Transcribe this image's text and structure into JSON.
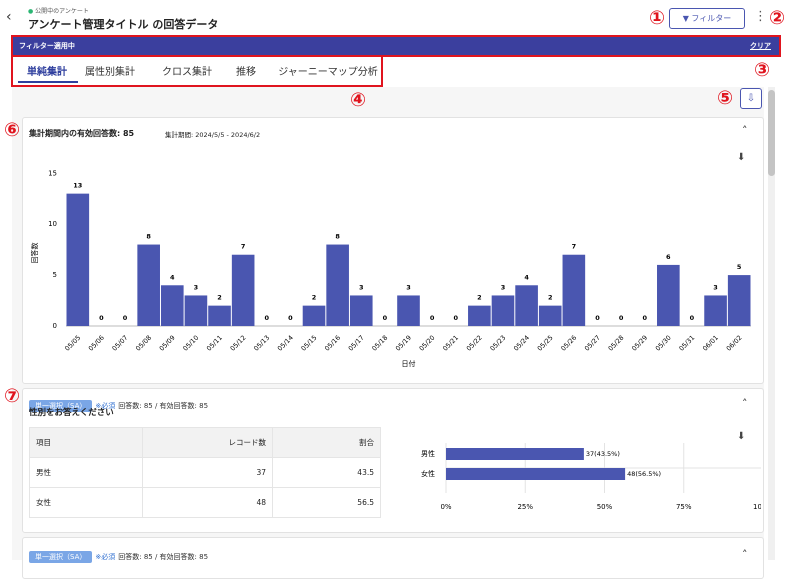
{
  "header": {
    "breadcrumb": "公開中のアンケート",
    "title": "アンケート管理タイトル の回答データ",
    "filter_button": "フィルター"
  },
  "annotations": [
    "①",
    "②",
    "③",
    "④",
    "⑤",
    "⑥",
    "⑦"
  ],
  "filter_bar": {
    "label": "フィルター適用中",
    "clear": "クリア"
  },
  "tabs": [
    "単純集計",
    "属性別集計",
    "クロス集計",
    "推移",
    "ジャーニーマップ分析"
  ],
  "summary": {
    "valid_responses": "集計期間内の有効回答数: 85",
    "period": "集計期間: 2024/5/5 - 2024/6/2"
  },
  "chart_data": [
    {
      "type": "bar",
      "x_label": "日付",
      "y_label": "回答数",
      "categories": [
        "05/05",
        "05/06",
        "05/07",
        "05/08",
        "05/09",
        "05/10",
        "05/11",
        "05/12",
        "05/13",
        "05/14",
        "05/15",
        "05/16",
        "05/17",
        "05/18",
        "05/19",
        "05/20",
        "05/21",
        "05/22",
        "05/23",
        "05/24",
        "05/25",
        "05/26",
        "05/27",
        "05/28",
        "05/29",
        "05/30",
        "05/31",
        "06/01",
        "06/02"
      ],
      "values": [
        13,
        0,
        0,
        8,
        4,
        3,
        2,
        7,
        0,
        0,
        2,
        8,
        3,
        0,
        3,
        0,
        0,
        2,
        3,
        4,
        2,
        7,
        0,
        0,
        0,
        6,
        0,
        3,
        5
      ],
      "color": "#4a56b0",
      "ylim": [
        0,
        16.5
      ],
      "yticks": [
        0,
        5,
        10,
        15
      ],
      "grid": false
    },
    {
      "type": "hbar",
      "categories": [
        "男性",
        "女性"
      ],
      "values": [
        43.5,
        56.5
      ],
      "value_labels": [
        "37(43.5%)",
        "48(56.5%)"
      ],
      "color": "#4a56b0",
      "xlim": [
        0,
        100
      ],
      "xticks": [
        {
          "value": 0,
          "label": "0%"
        },
        {
          "value": 25,
          "label": "25%"
        },
        {
          "value": 50,
          "label": "50%"
        },
        {
          "value": 75,
          "label": "75%"
        },
        {
          "value": 100,
          "label": "100%"
        }
      ],
      "grid": true
    }
  ],
  "questions": [
    {
      "tag": "単一選択（SA）",
      "required": "※必須",
      "counts": "回答数: 85 / 有効回答数: 85",
      "text": "性別をお答えください",
      "table": {
        "header": [
          "項目",
          "レコード数",
          "割合"
        ],
        "rows": [
          [
            "男性",
            37,
            43.5
          ],
          [
            "女性",
            48,
            56.5
          ]
        ]
      }
    },
    {
      "tag": "単一選択（SA）",
      "required": "※必須",
      "counts": "回答数: 85 / 有効回答数: 85"
    }
  ]
}
